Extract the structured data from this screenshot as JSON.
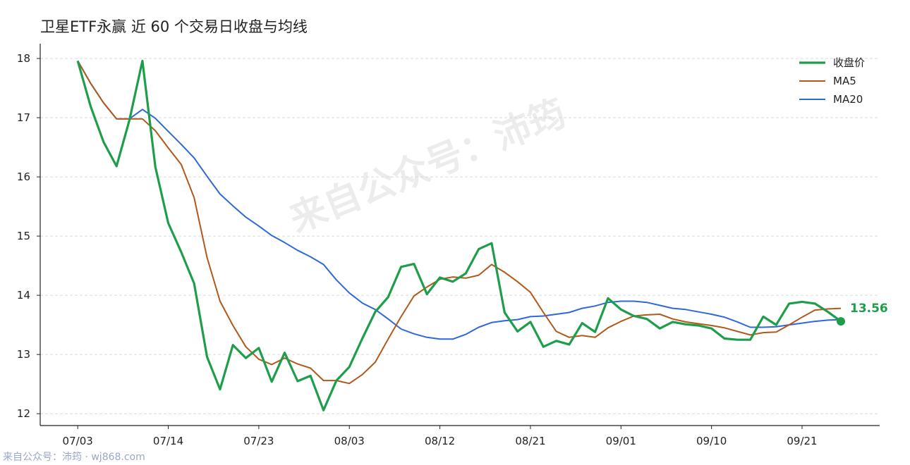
{
  "title": "卫星ETF永赢 近 60 个交易日收盘与均线",
  "footer": "来自公众号：沛筠 · wj868.com",
  "watermark": "来自公众号：沛筠",
  "colors": {
    "close": "#1e9e4a",
    "ma5": "#b3581b",
    "ma20": "#2f68d8",
    "grid": "#d9d9d9",
    "axis": "#222222"
  },
  "chart_data": {
    "type": "line",
    "title": "卫星ETF永赢 近 60 个交易日收盘与均线",
    "x_tick_labels": [
      "07/03",
      "07/14",
      "07/23",
      "08/03",
      "08/12",
      "08/21",
      "09/01",
      "09/10",
      "09/21"
    ],
    "x_tick_index": [
      0,
      7,
      14,
      21,
      28,
      35,
      42,
      49,
      56
    ],
    "y_ticks": [
      12,
      13,
      14,
      15,
      16,
      17,
      18
    ],
    "ylim": [
      11.8,
      18.25
    ],
    "xlim": [
      -2.9,
      62.0
    ],
    "grid": "horizontal dashed",
    "legend_position": "top-right",
    "last_value_label": "13.56",
    "series": [
      {
        "name": "收盘价",
        "color": "#1e9e4a",
        "width": 3.2,
        "values": [
          17.96,
          17.19,
          16.59,
          16.18,
          16.96,
          17.96,
          16.17,
          15.22,
          14.73,
          14.2,
          12.96,
          12.41,
          13.16,
          12.94,
          13.11,
          12.54,
          13.03,
          12.55,
          12.64,
          12.06,
          12.56,
          12.79,
          13.27,
          13.72,
          13.97,
          14.48,
          14.53,
          14.02,
          14.3,
          14.23,
          14.37,
          14.78,
          14.88,
          13.71,
          13.39,
          13.55,
          13.13,
          13.23,
          13.17,
          13.53,
          13.38,
          13.95,
          13.76,
          13.65,
          13.6,
          13.44,
          13.55,
          13.51,
          13.49,
          13.44,
          13.27,
          13.25,
          13.25,
          13.64,
          13.5,
          13.86,
          13.89,
          13.86,
          13.72,
          13.56
        ]
      },
      {
        "name": "MA5",
        "color": "#b3581b",
        "width": 2,
        "values": [
          17.96,
          17.58,
          17.25,
          16.98,
          16.98,
          16.98,
          16.78,
          16.49,
          16.21,
          15.65,
          14.64,
          13.9,
          13.49,
          13.13,
          12.92,
          12.83,
          12.94,
          12.84,
          12.77,
          12.56,
          12.56,
          12.51,
          12.66,
          12.87,
          13.26,
          13.64,
          13.99,
          14.14,
          14.27,
          14.31,
          14.29,
          14.34,
          14.52,
          14.39,
          14.23,
          14.05,
          13.71,
          13.39,
          13.29,
          13.32,
          13.29,
          13.45,
          13.56,
          13.65,
          13.67,
          13.68,
          13.6,
          13.55,
          13.52,
          13.49,
          13.45,
          13.39,
          13.33,
          13.37,
          13.38,
          13.5,
          13.63,
          13.75,
          13.77,
          13.78
        ]
      },
      {
        "name": "MA20",
        "color": "#2f68d8",
        "width": 2,
        "values": [
          17.96,
          17.58,
          17.25,
          16.98,
          16.98,
          17.14,
          16.99,
          16.77,
          16.55,
          16.32,
          16.01,
          15.71,
          15.51,
          15.32,
          15.17,
          15.01,
          14.89,
          14.76,
          14.65,
          14.52,
          14.26,
          14.04,
          13.87,
          13.76,
          13.6,
          13.43,
          13.35,
          13.29,
          13.26,
          13.26,
          13.34,
          13.46,
          13.54,
          13.57,
          13.59,
          13.64,
          13.65,
          13.68,
          13.71,
          13.78,
          13.82,
          13.88,
          13.9,
          13.9,
          13.88,
          13.83,
          13.78,
          13.76,
          13.72,
          13.68,
          13.63,
          13.55,
          13.46,
          13.46,
          13.47,
          13.5,
          13.53,
          13.56,
          13.58,
          13.59
        ]
      }
    ]
  }
}
